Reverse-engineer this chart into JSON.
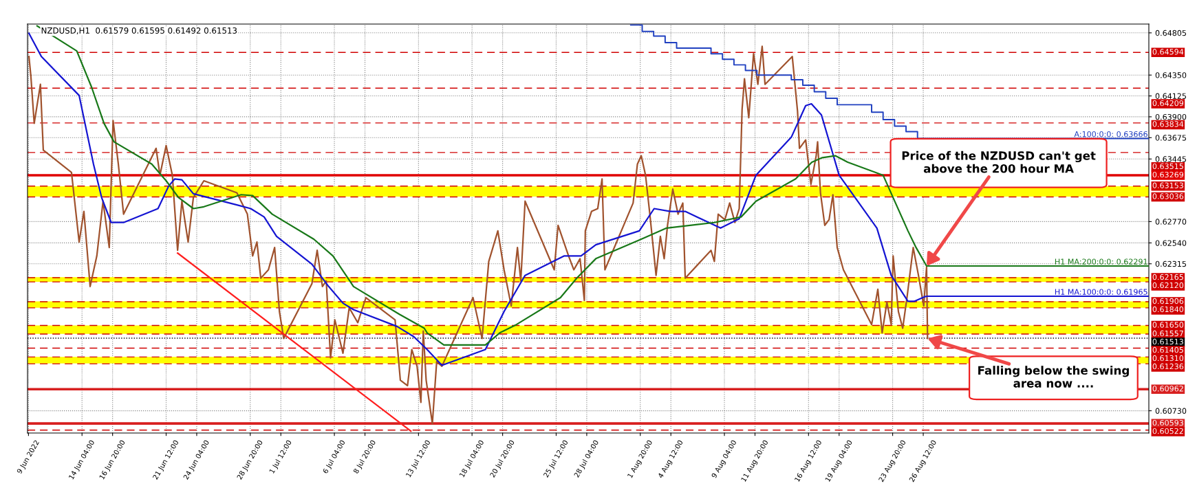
{
  "chart_data": {
    "type": "line",
    "title": "NZDUSD,H1  0.61579 0.61595 0.61492 0.61513",
    "xlim": [
      "2022-06-09T10:00",
      "2022-09-15T04:00"
    ],
    "ylim": [
      0.6049,
      0.649
    ],
    "xticks": [
      {
        "value": "2022-06-09T12:00",
        "label": "9 Jun 2022"
      },
      {
        "value": "2022-06-14T04:00",
        "label": "14 Jun 04:00"
      },
      {
        "value": "2022-06-16T20:00",
        "label": "16 Jun 20:00"
      },
      {
        "value": "2022-06-21T12:00",
        "label": "21 Jun 12:00"
      },
      {
        "value": "2022-06-24T04:00",
        "label": "24 Jun 04:00"
      },
      {
        "value": "2022-06-28T20:00",
        "label": "28 Jun 20:00"
      },
      {
        "value": "2022-07-01T12:00",
        "label": "1 Jul 12:00"
      },
      {
        "value": "2022-07-06T04:00",
        "label": "6 Jul 04:00"
      },
      {
        "value": "2022-07-08T20:00",
        "label": "8 Jul 20:00"
      },
      {
        "value": "2022-07-13T12:00",
        "label": "13 Jul 12:00"
      },
      {
        "value": "2022-07-18T04:00",
        "label": "18 Jul 04:00"
      },
      {
        "value": "2022-07-20T20:00",
        "label": "20 Jul 20:00"
      },
      {
        "value": "2022-07-25T12:00",
        "label": "25 Jul 12:00"
      },
      {
        "value": "2022-07-28T04:00",
        "label": "28 Jul 04:00"
      },
      {
        "value": "2022-08-01T20:00",
        "label": "1 Aug 20:00"
      },
      {
        "value": "2022-08-04T12:00",
        "label": "4 Aug 12:00"
      },
      {
        "value": "2022-08-09T04:00",
        "label": "9 Aug 04:00"
      },
      {
        "value": "2022-08-11T20:00",
        "label": "11 Aug 20:00"
      },
      {
        "value": "2022-08-16T12:00",
        "label": "16 Aug 12:00"
      },
      {
        "value": "2022-08-19T04:00",
        "label": "19 Aug 04:00"
      },
      {
        "value": "2022-08-23T20:00",
        "label": "23 Aug 20:00"
      },
      {
        "value": "2022-08-26T12:00",
        "label": "26 Aug 12:00"
      }
    ],
    "yticks": [
      0.64805,
      {
        "value": 0.6435,
        "label": "0.64350"
      },
      0.64125,
      {
        "value": 0.639,
        "label": "0.63900"
      },
      0.63675,
      0.63445,
      {
        "value": 0.6277,
        "label": "0.62770"
      },
      {
        "value": 0.6254,
        "label": "0.62540"
      },
      0.62315,
      {
        "value": 0.6073,
        "label": "0.60730"
      }
    ],
    "grid": true,
    "series": [
      {
        "color": "#a0522d",
        "x": [
          "2022-06-09T13:00",
          "2022-06-09T17:00",
          "2022-06-10T00:00",
          "2022-06-10T13:00",
          "2022-06-10T19:00",
          "2022-06-13T06:00",
          "2022-06-13T22:00",
          "2022-06-14T08:00",
          "2022-06-14T21:00",
          "2022-06-15T11:00",
          "2022-06-16T00:00",
          "2022-06-16T13:00",
          "2022-06-16T21:00",
          "2022-06-17T08:00",
          "2022-06-17T19:00",
          "2022-06-20T15:00",
          "2022-06-20T23:00",
          "2022-06-21T12:00",
          "2022-06-22T01:00",
          "2022-06-22T12:00",
          "2022-06-22T21:00",
          "2022-06-23T10:00",
          "2022-06-23T21:00",
          "2022-06-24T19:00",
          "2022-06-27T16:00",
          "2022-06-28T14:00",
          "2022-06-29T01:00",
          "2022-06-29T10:00",
          "2022-06-29T18:00",
          "2022-06-30T10:00",
          "2022-06-30T23:00",
          "2022-07-01T09:00",
          "2022-07-01T18:00",
          "2022-07-04T05:00",
          "2022-07-04T16:00",
          "2022-07-05T03:00",
          "2022-07-05T11:00",
          "2022-07-05T20:00",
          "2022-07-06T05:00",
          "2022-07-06T22:00",
          "2022-07-07T11:00",
          "2022-07-08T05:00",
          "2022-07-08T22:00",
          "2022-07-11T11:00",
          "2022-07-11T22:00",
          "2022-07-12T13:00",
          "2022-07-12T22:00",
          "2022-07-13T09:00",
          "2022-07-13T17:00",
          "2022-07-13T22:00",
          "2022-07-14T04:00",
          "2022-07-14T17:00",
          "2022-07-15T02:00",
          "2022-07-15T13:00",
          "2022-07-18T06:00",
          "2022-07-19T01:00",
          "2022-07-19T15:00",
          "2022-07-20T10:00",
          "2022-07-20T23:00",
          "2022-07-21T14:00",
          "2022-07-22T03:00",
          "2022-07-22T10:00",
          "2022-07-22T19:00",
          "2022-07-25T08:00",
          "2022-07-25T16:00",
          "2022-07-26T14:00",
          "2022-07-27T01:00",
          "2022-07-27T14:00",
          "2022-07-27T23:00",
          "2022-07-28T01:00",
          "2022-07-28T14:00",
          "2022-07-29T03:00",
          "2022-07-29T12:00",
          "2022-07-29T18:00",
          "2022-08-01T05:00",
          "2022-08-01T14:00",
          "2022-08-01T22:00",
          "2022-08-02T07:00",
          "2022-08-02T16:00",
          "2022-08-03T05:00",
          "2022-08-03T14:00",
          "2022-08-03T22:00",
          "2022-08-04T05:00",
          "2022-08-04T16:00",
          "2022-08-05T03:00",
          "2022-08-05T13:00",
          "2022-08-05T18:00",
          "2022-08-08T00:00",
          "2022-08-08T07:00",
          "2022-08-08T15:00",
          "2022-08-09T05:00",
          "2022-08-09T15:00",
          "2022-08-10T02:00",
          "2022-08-10T11:00",
          "2022-08-10T17:00",
          "2022-08-10T22:00",
          "2022-08-11T07:00",
          "2022-08-11T17:00",
          "2022-08-12T02:00",
          "2022-08-12T11:00",
          "2022-08-12T17:00",
          "2022-08-15T02:00",
          "2022-08-15T13:00",
          "2022-08-15T17:00",
          "2022-08-16T06:00",
          "2022-08-16T17:00",
          "2022-08-17T04:00",
          "2022-08-17T07:00",
          "2022-08-17T13:00",
          "2022-08-17T22:00",
          "2022-08-18T07:00",
          "2022-08-18T15:00",
          "2022-08-19T00:00",
          "2022-08-19T13:00",
          "2022-08-22T00:00",
          "2022-08-22T13:00",
          "2022-08-22T22:00",
          "2022-08-23T08:00",
          "2022-08-23T17:00",
          "2022-08-23T21:00",
          "2022-08-24T08:00",
          "2022-08-24T17:00",
          "2022-08-25T02:00",
          "2022-08-25T15:00",
          "2022-08-26T02:00",
          "2022-08-26T13:00",
          "2022-08-26T19:00",
          "2022-08-26T21:00"
        ],
        "values": [
          0.6455,
          0.6434,
          0.6383,
          0.6425,
          0.6354,
          0.633,
          0.6255,
          0.6288,
          0.6207,
          0.624,
          0.6299,
          0.6249,
          0.6386,
          0.6339,
          0.6285,
          0.6356,
          0.6327,
          0.6359,
          0.6327,
          0.6246,
          0.6299,
          0.6255,
          0.6303,
          0.6321,
          0.6308,
          0.6285,
          0.624,
          0.6255,
          0.6216,
          0.6225,
          0.6249,
          0.618,
          0.6151,
          0.621,
          0.6246,
          0.6207,
          0.6213,
          0.613,
          0.6171,
          0.6135,
          0.6184,
          0.6168,
          0.6195,
          0.6171,
          0.6106,
          0.61,
          0.6139,
          0.6121,
          0.6082,
          0.6159,
          0.6106,
          0.6059,
          0.6126,
          0.6121,
          0.6195,
          0.6151,
          0.6234,
          0.6267,
          0.6225,
          0.6186,
          0.6249,
          0.6213,
          0.6299,
          0.6225,
          0.6273,
          0.624,
          0.6225,
          0.6237,
          0.6192,
          0.6267,
          0.6288,
          0.6291,
          0.6323,
          0.6225,
          0.6297,
          0.6339,
          0.6348,
          0.6327,
          0.6285,
          0.6219,
          0.6261,
          0.6237,
          0.6273,
          0.6312,
          0.6285,
          0.6297,
          0.6216,
          0.6246,
          0.6234,
          0.6285,
          0.6279,
          0.6297,
          0.6276,
          0.6291,
          0.6398,
          0.6431,
          0.6389,
          0.6458,
          0.6425,
          0.6466,
          0.6425,
          0.6455,
          0.6396,
          0.6356,
          0.6365,
          0.6317,
          0.6348,
          0.6363,
          0.6308,
          0.6273,
          0.6279,
          0.6306,
          0.6249,
          0.6225,
          0.6166,
          0.6204,
          0.6157,
          0.619,
          0.6166,
          0.624,
          0.618,
          0.6162,
          0.6195,
          0.6249,
          0.6219,
          0.6186,
          0.6228,
          0.6151
        ]
      },
      {
        "name": "H1 MA:100:0:0: 0.61965",
        "color": "#1414d2",
        "x": [
          "2022-06-09T13:00",
          "2022-06-10T15:00",
          "2022-06-13T22:00",
          "2022-06-15T04:00",
          "2022-06-15T21:00",
          "2022-06-16T17:00",
          "2022-06-17T19:00",
          "2022-06-20T19:00",
          "2022-06-21T17:00",
          "2022-06-22T06:00",
          "2022-06-22T21:00",
          "2022-06-23T21:00",
          "2022-06-27T16:00",
          "2022-06-28T21:00",
          "2022-06-30T01:00",
          "2022-07-01T03:00",
          "2022-07-04T05:00",
          "2022-07-05T16:00",
          "2022-07-06T22:00",
          "2022-07-07T20:00",
          "2022-07-11T15:00",
          "2022-07-13T02:00",
          "2022-07-14T06:00",
          "2022-07-15T13:00",
          "2022-07-19T08:00",
          "2022-07-20T23:00",
          "2022-07-22T19:00",
          "2022-07-26T05:00",
          "2022-07-27T16:00",
          "2022-07-28T23:00",
          "2022-08-01T18:00",
          "2022-08-03T01:00",
          "2022-08-04T11:00",
          "2022-08-05T18:00",
          "2022-08-08T20:00",
          "2022-08-10T11:00",
          "2022-08-11T22:00",
          "2022-08-15T00:00",
          "2022-08-16T06:00",
          "2022-08-16T18:00",
          "2022-08-17T15:00",
          "2022-08-19T04:00",
          "2022-08-22T11:00",
          "2022-08-23T17:00",
          "2022-08-25T04:00",
          "2022-08-25T17:00",
          "2022-08-26T15:00",
          "2022-08-26T21:00",
          "2022-09-15T04:00"
        ],
        "values": [
          0.648,
          0.6455,
          0.6413,
          0.6339,
          0.6303,
          0.6276,
          0.6276,
          0.6291,
          0.6315,
          0.6323,
          0.6322,
          0.6307,
          0.6295,
          0.6291,
          0.6282,
          0.6261,
          0.6231,
          0.6207,
          0.6189,
          0.6182,
          0.6164,
          0.6153,
          0.6139,
          0.6122,
          0.6139,
          0.618,
          0.6219,
          0.624,
          0.624,
          0.6252,
          0.6267,
          0.6291,
          0.6288,
          0.6288,
          0.627,
          0.628,
          0.6327,
          0.6368,
          0.6402,
          0.6404,
          0.6392,
          0.6327,
          0.627,
          0.6219,
          0.6191,
          0.6191,
          0.6196,
          0.61965,
          0.61965
        ]
      },
      {
        "name": "H1 MA:200:0:0: 0.62291",
        "color": "#187818",
        "x": [
          "2022-06-10T06:00",
          "2022-06-13T17:00",
          "2022-06-15T00:00",
          "2022-06-16T02:00",
          "2022-06-16T23:00",
          "2022-06-20T06:00",
          "2022-06-21T12:00",
          "2022-06-22T14:00",
          "2022-06-23T21:00",
          "2022-06-24T19:00",
          "2022-06-28T01:00",
          "2022-06-29T01:00",
          "2022-06-30T18:00",
          "2022-07-04T09:00",
          "2022-07-06T01:00",
          "2022-07-07T20:00",
          "2022-07-11T20:00",
          "2022-07-14T00:00",
          "2022-07-14T06:00",
          "2022-07-15T17:00",
          "2022-07-19T08:00",
          "2022-07-20T14:00",
          "2022-07-22T01:00",
          "2022-07-25T21:00",
          "2022-07-27T07:00",
          "2022-07-28T23:00",
          "2022-08-01T22:00",
          "2022-08-04T03:00",
          "2022-08-08T07:00",
          "2022-08-10T15:00",
          "2022-08-11T22:00",
          "2022-08-15T09:00",
          "2022-08-16T19:00",
          "2022-08-17T17:00",
          "2022-08-18T20:00",
          "2022-08-19T22:00",
          "2022-08-23T00:00",
          "2022-08-24T02:00",
          "2022-08-25T04:00",
          "2022-08-25T21:00",
          "2022-08-26T19:00",
          "2022-09-15T04:00"
        ],
        "values": [
          0.6488,
          0.6461,
          0.6422,
          0.6383,
          0.6363,
          0.6339,
          0.6321,
          0.6303,
          0.6291,
          0.6293,
          0.6306,
          0.6305,
          0.6285,
          0.6258,
          0.624,
          0.6207,
          0.6177,
          0.6162,
          0.6157,
          0.6144,
          0.6144,
          0.6157,
          0.6166,
          0.6195,
          0.6216,
          0.6237,
          0.6258,
          0.627,
          0.6276,
          0.6282,
          0.6299,
          0.6323,
          0.6341,
          0.6346,
          0.6348,
          0.6341,
          0.6327,
          0.6297,
          0.6267,
          0.6249,
          0.62291,
          0.62291
        ]
      },
      {
        "type": "step",
        "name": "A:100:0:0: 0.63666",
        "color": "#2040c0",
        "x": [
          "2022-08-01",
          "2022-08-02",
          "2022-08-03",
          "2022-08-04",
          "2022-08-05",
          "2022-08-08",
          "2022-08-09",
          "2022-08-10",
          "2022-08-11",
          "2022-08-12",
          "2022-08-15",
          "2022-08-16",
          "2022-08-17",
          "2022-08-18",
          "2022-08-19",
          "2022-08-22",
          "2022-08-23",
          "2022-08-24",
          "2022-08-25",
          "2022-08-26",
          "2022-09-15T04:00"
        ],
        "values": [
          0.6489,
          0.6482,
          0.6477,
          0.647,
          0.6464,
          0.6458,
          0.6452,
          0.6446,
          0.644,
          0.6435,
          0.643,
          0.6424,
          0.6417,
          0.641,
          0.6403,
          0.6395,
          0.6387,
          0.638,
          0.6374,
          0.63666,
          0.63666
        ]
      },
      {
        "color": "#ff1e1e",
        "x": [
          "2022-06-22T12:00",
          "2022-07-12T20:00"
        ],
        "values": [
          0.6243,
          0.6051
        ]
      }
    ],
    "bands": [
      {
        "axis": "y",
        "from": 0.6304,
        "to": 0.6315,
        "color": "#ffff00"
      },
      {
        "axis": "y",
        "from": 0.6212,
        "to": 0.6217,
        "color": "#ffff00"
      },
      {
        "axis": "y",
        "from": 0.6184,
        "to": 0.6191,
        "color": "#ffff00"
      },
      {
        "axis": "y",
        "from": 0.6156,
        "to": 0.6165,
        "color": "#ffff00"
      },
      {
        "axis": "y",
        "from": 0.6124,
        "to": 0.6131,
        "color": "#ffff00"
      }
    ],
    "ref_lines": [
      {
        "axis": "y",
        "value": 0.64594,
        "label": "0.64594",
        "color": "#d00000",
        "line_style": "dashed"
      },
      {
        "axis": "y",
        "value": 0.64209,
        "label": "0.64209",
        "color": "#d00000",
        "line_style": "dashed"
      },
      {
        "axis": "y",
        "value": 0.63834,
        "label": "0.63834",
        "color": "#d00000",
        "line_style": "dashed"
      },
      {
        "axis": "y",
        "value": 0.63515,
        "label": "0.63515",
        "color": "#d00000",
        "line_style": "dashed"
      },
      {
        "axis": "y",
        "value": 0.63269,
        "label": "0.63269",
        "color": "#e00000",
        "line_style": "solid"
      },
      {
        "axis": "y",
        "value": 0.63153,
        "label": "0.63153",
        "color": "#d00000",
        "line_style": "dashed"
      },
      {
        "axis": "y",
        "value": 0.63036,
        "label": "0.63036",
        "color": "#d00000",
        "line_style": "dashed"
      },
      {
        "axis": "y",
        "value": 0.62165,
        "label": "0.62165",
        "color": "#d00000",
        "line_style": "dashed"
      },
      {
        "axis": "y",
        "value": 0.6212,
        "label": "0.62120",
        "color": "#d00000",
        "line_style": "dashed"
      },
      {
        "axis": "y",
        "value": 0.61906,
        "label": "0.61906",
        "color": "#d00000",
        "line_style": "dashed"
      },
      {
        "axis": "y",
        "value": 0.6184,
        "label": "0.61840",
        "color": "#d00000",
        "line_style": "dashed"
      },
      {
        "axis": "y",
        "value": 0.6165,
        "label": "0.61650",
        "color": "#d00000",
        "line_style": "dashed"
      },
      {
        "axis": "y",
        "value": 0.61557,
        "label": "0.61557",
        "color": "#d00000",
        "line_style": "dashed"
      },
      {
        "axis": "y",
        "value": 0.61513,
        "label": "0.61513",
        "color": "#000000",
        "line_style": "dotted"
      },
      {
        "axis": "y",
        "value": 0.61405,
        "label": "0.61405",
        "color": "#d00000",
        "line_style": "dashed"
      },
      {
        "axis": "y",
        "value": 0.6131,
        "label": "0.61310",
        "color": "#d00000",
        "line_style": "dashed"
      },
      {
        "axis": "y",
        "value": 0.61236,
        "label": "0.61236",
        "color": "#d00000",
        "line_style": "dashed"
      },
      {
        "axis": "y",
        "value": 0.60962,
        "label": "0.60962",
        "color": "#d82020",
        "line_style": "solid"
      },
      {
        "axis": "y",
        "value": 0.60593,
        "label": "0.60593",
        "color": "#d82020",
        "line_style": "solid"
      },
      {
        "axis": "y",
        "value": 0.60522,
        "label": "0.60522",
        "color": "#d00000",
        "line_style": "dashed"
      }
    ],
    "annotations": [
      {
        "text": "Price of the NZDUSD can't get\nabove the 200 hour MA",
        "x": "2022-08-26T19:00",
        "y": 0.62291
      },
      {
        "text": "Falling below the swing\narea now ....",
        "x": "2022-08-26T21:00",
        "y": 0.6151
      }
    ]
  }
}
